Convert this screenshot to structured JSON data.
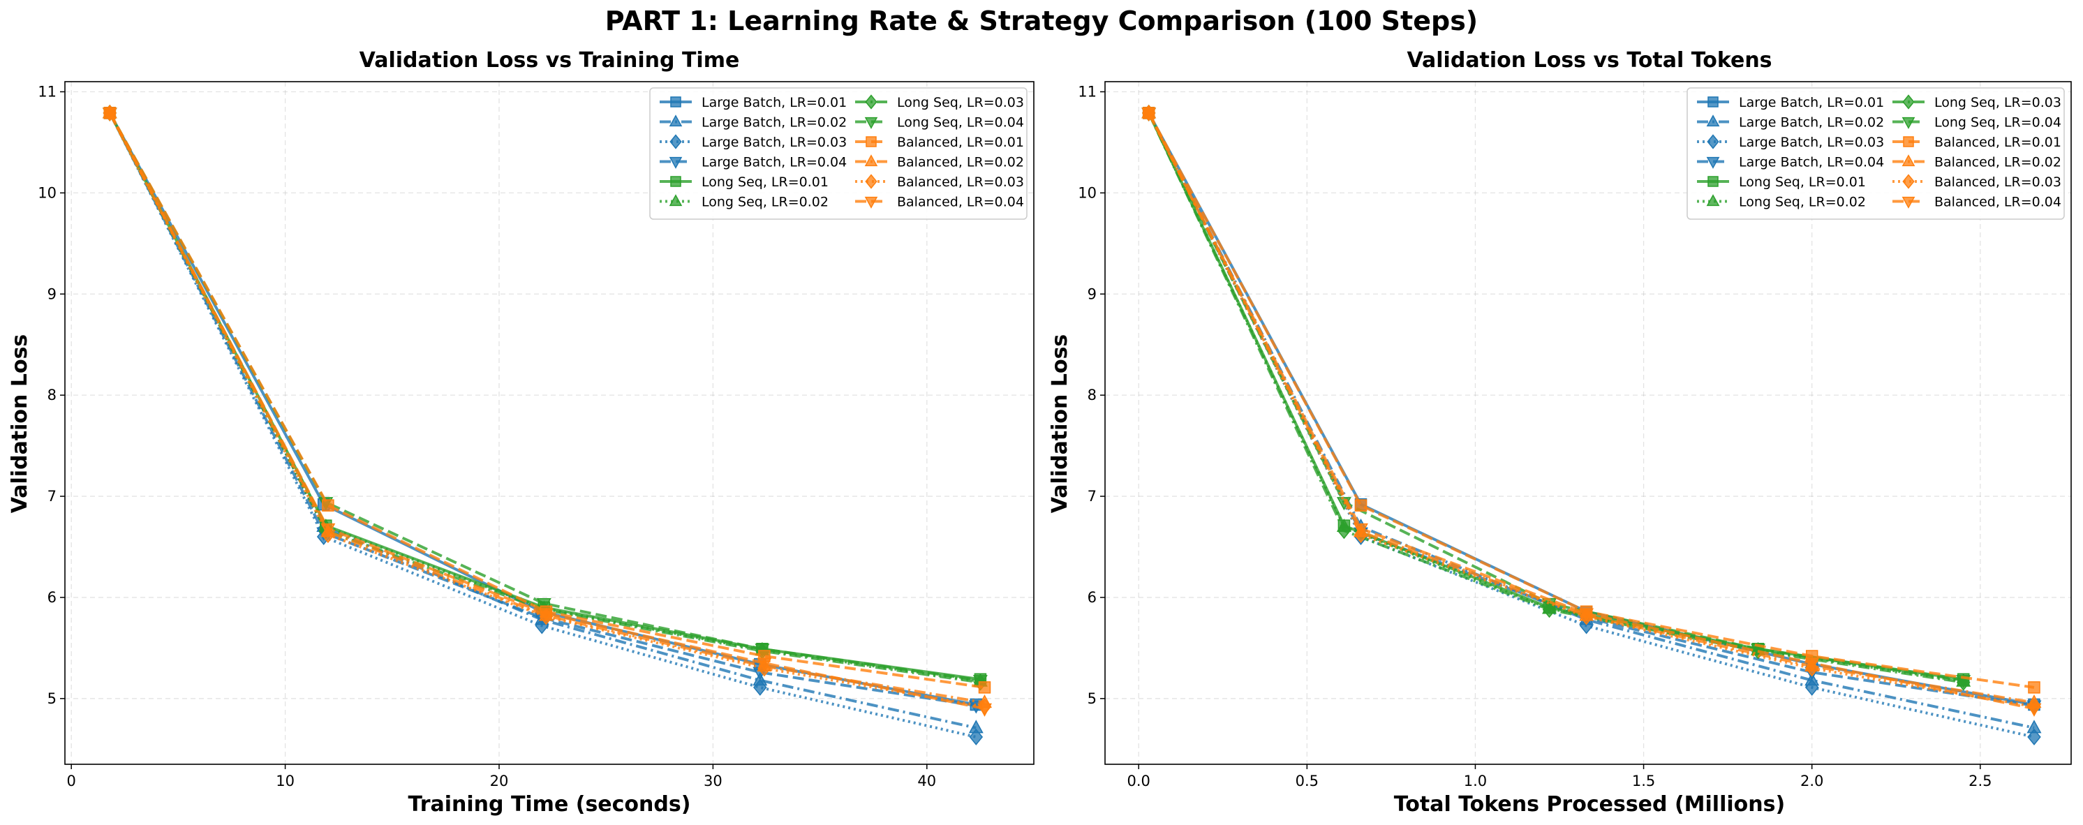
{
  "figure": {
    "title": "PART 1: Learning Rate & Strategy Comparison (100 Steps)"
  },
  "colors": {
    "Large Batch": "#1f77b4",
    "Long Seq": "#2ca02c",
    "Balanced": "#ff7f0e"
  },
  "chart_data": [
    {
      "type": "line",
      "title": "Validation Loss vs Training Time",
      "xlabel": "Training Time (seconds)",
      "ylabel": "Validation Loss",
      "xlim": [
        -0.3,
        45
      ],
      "ylim": [
        4.35,
        11.1
      ],
      "xticks": [
        0,
        10,
        20,
        30,
        40
      ],
      "yticks": [
        5,
        6,
        7,
        8,
        9,
        10,
        11
      ],
      "grid": true,
      "legend_position": "top-right",
      "legend_columns": 2,
      "series": [
        {
          "name": "Large Batch, LR=0.01",
          "marker": "square",
          "linestyle": "solid",
          "x": [
            1.8,
            11.8,
            22.0,
            32.2,
            42.3
          ],
          "y": [
            10.79,
            6.92,
            5.86,
            5.34,
            4.94
          ]
        },
        {
          "name": "Large Batch, LR=0.02",
          "marker": "triangle-up",
          "linestyle": "dashdot",
          "x": [
            1.8,
            11.8,
            22.0,
            32.2,
            42.3
          ],
          "y": [
            10.79,
            6.7,
            5.78,
            5.18,
            4.71
          ]
        },
        {
          "name": "Large Batch, LR=0.03",
          "marker": "diamond",
          "linestyle": "dotted",
          "x": [
            1.8,
            11.8,
            22.0,
            32.2,
            42.3
          ],
          "y": [
            10.79,
            6.6,
            5.72,
            5.11,
            4.62
          ]
        },
        {
          "name": "Large Batch, LR=0.04",
          "marker": "triangle-down",
          "linestyle": "dashed",
          "x": [
            1.8,
            11.8,
            22.0,
            32.2,
            42.3
          ],
          "y": [
            10.79,
            6.64,
            5.8,
            5.26,
            4.93
          ]
        },
        {
          "name": "Long Seq, LR=0.01",
          "marker": "square",
          "linestyle": "solid",
          "x": [
            1.8,
            11.9,
            22.1,
            32.3,
            42.5
          ],
          "y": [
            10.79,
            6.71,
            5.9,
            5.49,
            5.19
          ]
        },
        {
          "name": "Long Seq, LR=0.02",
          "marker": "triangle-up",
          "linestyle": "dotted",
          "x": [
            1.8,
            11.9,
            22.1,
            32.3,
            42.5
          ],
          "y": [
            10.79,
            6.7,
            5.89,
            5.48,
            5.17
          ]
        },
        {
          "name": "Long Seq, LR=0.03",
          "marker": "diamond",
          "linestyle": "dashdot",
          "x": [
            1.8,
            11.9,
            22.1,
            32.3,
            42.5
          ],
          "y": [
            10.79,
            6.66,
            5.88,
            5.47,
            5.16
          ]
        },
        {
          "name": "Long Seq, LR=0.04",
          "marker": "triangle-down",
          "linestyle": "dashed",
          "x": [
            1.8,
            11.9,
            22.1,
            32.3,
            42.5
          ],
          "y": [
            10.79,
            6.94,
            5.94,
            5.49,
            5.18
          ]
        },
        {
          "name": "Balanced, LR=0.01",
          "marker": "square",
          "linestyle": "dashed",
          "x": [
            1.8,
            12.0,
            22.2,
            32.4,
            42.7
          ],
          "y": [
            10.79,
            6.91,
            5.86,
            5.42,
            5.11
          ]
        },
        {
          "name": "Balanced, LR=0.02",
          "marker": "triangle-up",
          "linestyle": "dashdot",
          "x": [
            1.8,
            12.0,
            22.2,
            32.4,
            42.7
          ],
          "y": [
            10.79,
            6.65,
            5.82,
            5.32,
            4.96
          ]
        },
        {
          "name": "Balanced, LR=0.03",
          "marker": "diamond",
          "linestyle": "dotted",
          "x": [
            1.8,
            12.0,
            22.2,
            32.4,
            42.7
          ],
          "y": [
            10.79,
            6.62,
            5.81,
            5.3,
            4.92
          ]
        },
        {
          "name": "Balanced, LR=0.04",
          "marker": "triangle-down",
          "linestyle": "dashed",
          "x": [
            1.8,
            12.0,
            22.2,
            32.4,
            42.7
          ],
          "y": [
            10.79,
            6.68,
            5.84,
            5.35,
            4.9
          ]
        }
      ]
    },
    {
      "type": "line",
      "title": "Validation Loss vs Total Tokens",
      "xlabel": "Total Tokens Processed (Millions)",
      "ylabel": "Validation Loss",
      "xlim": [
        -0.1,
        2.77
      ],
      "ylim": [
        4.35,
        11.1
      ],
      "xticks": [
        0.0,
        0.5,
        1.0,
        1.5,
        2.0,
        2.5
      ],
      "yticks": [
        5,
        6,
        7,
        8,
        9,
        10,
        11
      ],
      "grid": true,
      "legend_position": "top-right",
      "legend_columns": 2,
      "series": [
        {
          "name": "Large Batch, LR=0.01",
          "marker": "square",
          "linestyle": "solid",
          "x": [
            0.03,
            0.66,
            1.33,
            2.0,
            2.66
          ],
          "y": [
            10.79,
            6.92,
            5.86,
            5.34,
            4.94
          ]
        },
        {
          "name": "Large Batch, LR=0.02",
          "marker": "triangle-up",
          "linestyle": "dashdot",
          "x": [
            0.03,
            0.66,
            1.33,
            2.0,
            2.66
          ],
          "y": [
            10.79,
            6.7,
            5.78,
            5.18,
            4.71
          ]
        },
        {
          "name": "Large Batch, LR=0.03",
          "marker": "diamond",
          "linestyle": "dotted",
          "x": [
            0.03,
            0.66,
            1.33,
            2.0,
            2.66
          ],
          "y": [
            10.79,
            6.6,
            5.72,
            5.11,
            4.62
          ]
        },
        {
          "name": "Large Batch, LR=0.04",
          "marker": "triangle-down",
          "linestyle": "dashed",
          "x": [
            0.03,
            0.66,
            1.33,
            2.0,
            2.66
          ],
          "y": [
            10.79,
            6.64,
            5.8,
            5.26,
            4.93
          ]
        },
        {
          "name": "Long Seq, LR=0.01",
          "marker": "square",
          "linestyle": "solid",
          "x": [
            0.03,
            0.61,
            1.22,
            1.84,
            2.45
          ],
          "y": [
            10.79,
            6.71,
            5.9,
            5.49,
            5.19
          ]
        },
        {
          "name": "Long Seq, LR=0.02",
          "marker": "triangle-up",
          "linestyle": "dotted",
          "x": [
            0.03,
            0.61,
            1.22,
            1.84,
            2.45
          ],
          "y": [
            10.79,
            6.7,
            5.89,
            5.48,
            5.17
          ]
        },
        {
          "name": "Long Seq, LR=0.03",
          "marker": "diamond",
          "linestyle": "dashdot",
          "x": [
            0.03,
            0.61,
            1.22,
            1.84,
            2.45
          ],
          "y": [
            10.79,
            6.66,
            5.88,
            5.47,
            5.16
          ]
        },
        {
          "name": "Long Seq, LR=0.04",
          "marker": "triangle-down",
          "linestyle": "dashed",
          "x": [
            0.03,
            0.61,
            1.22,
            1.84,
            2.45
          ],
          "y": [
            10.79,
            6.94,
            5.94,
            5.49,
            5.18
          ]
        },
        {
          "name": "Balanced, LR=0.01",
          "marker": "square",
          "linestyle": "dashed",
          "x": [
            0.03,
            0.66,
            1.33,
            2.0,
            2.66
          ],
          "y": [
            10.79,
            6.91,
            5.86,
            5.42,
            5.11
          ]
        },
        {
          "name": "Balanced, LR=0.02",
          "marker": "triangle-up",
          "linestyle": "dashdot",
          "x": [
            0.03,
            0.66,
            1.33,
            2.0,
            2.66
          ],
          "y": [
            10.79,
            6.65,
            5.82,
            5.32,
            4.96
          ]
        },
        {
          "name": "Balanced, LR=0.03",
          "marker": "diamond",
          "linestyle": "dotted",
          "x": [
            0.03,
            0.66,
            1.33,
            2.0,
            2.66
          ],
          "y": [
            10.79,
            6.62,
            5.81,
            5.3,
            4.92
          ]
        },
        {
          "name": "Balanced, LR=0.04",
          "marker": "triangle-down",
          "linestyle": "dashed",
          "x": [
            0.03,
            0.66,
            1.33,
            2.0,
            2.66
          ],
          "y": [
            10.79,
            6.68,
            5.84,
            5.35,
            4.9
          ]
        }
      ]
    }
  ]
}
